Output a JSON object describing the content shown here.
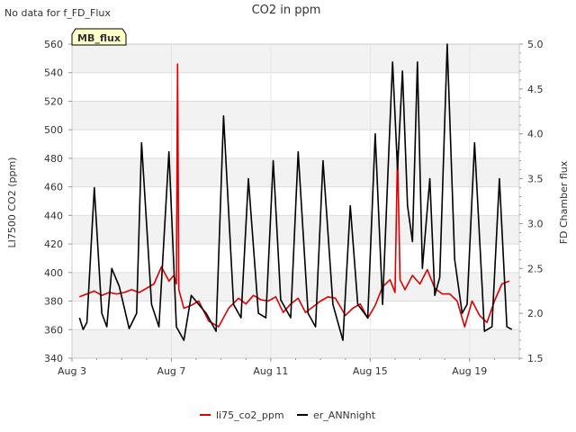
{
  "chart_data": {
    "type": "line",
    "title": "CO2 in ppm",
    "note": "No data for f_FD_Flux",
    "badge": "MB_flux",
    "ylabel_left": "LI7500 CO2 (ppm)",
    "ylabel_right": "FD Chamber flux",
    "ylim_left": [
      340,
      560
    ],
    "ylim_right": [
      1.5,
      5.0
    ],
    "xlim": [
      3.0,
      21.0
    ],
    "x_ticks": [
      {
        "x": 3,
        "label": "Aug 3"
      },
      {
        "x": 7,
        "label": "Aug 7"
      },
      {
        "x": 11,
        "label": "Aug 11"
      },
      {
        "x": 15,
        "label": "Aug 15"
      },
      {
        "x": 19,
        "label": "Aug 19"
      }
    ],
    "y_ticks_left": [
      340,
      360,
      380,
      400,
      420,
      440,
      460,
      480,
      500,
      520,
      540,
      560
    ],
    "y_ticks_right": [
      "1.5",
      "2.0",
      "2.5",
      "3.0",
      "3.5",
      "4.0",
      "4.5",
      "5.0"
    ],
    "grid": true,
    "legend_position": "bottom",
    "series": [
      {
        "name": "li75_co2_ppm",
        "color": "#dd0000",
        "axis": "left",
        "x": [
          3.3,
          3.6,
          3.9,
          4.2,
          4.5,
          4.8,
          5.1,
          5.4,
          5.7,
          6.0,
          6.3,
          6.6,
          6.9,
          7.1,
          7.2,
          7.25,
          7.3,
          7.5,
          7.8,
          8.1,
          8.5,
          8.9,
          9.3,
          9.7,
          10.0,
          10.3,
          10.6,
          10.9,
          11.2,
          11.5,
          11.8,
          12.1,
          12.4,
          12.7,
          13.0,
          13.3,
          13.6,
          14.0,
          14.3,
          14.6,
          14.9,
          15.2,
          15.5,
          15.8,
          16.0,
          16.1,
          16.2,
          16.4,
          16.7,
          17.0,
          17.3,
          17.6,
          17.9,
          18.2,
          18.5,
          18.8,
          19.1,
          19.4,
          19.7,
          20.0,
          20.3,
          20.6
        ],
        "y": [
          383,
          385,
          387,
          384,
          386,
          385,
          386,
          388,
          386,
          389,
          392,
          404,
          394,
          398,
          392,
          546,
          388,
          375,
          377,
          380,
          366,
          362,
          375,
          382,
          378,
          384,
          381,
          380,
          383,
          372,
          378,
          382,
          372,
          376,
          380,
          383,
          382,
          370,
          375,
          378,
          368,
          377,
          390,
          395,
          386,
          485,
          395,
          388,
          398,
          392,
          402,
          389,
          385,
          385,
          380,
          362,
          380,
          370,
          365,
          380,
          392,
          394
        ]
      },
      {
        "name": "er_ANNnight",
        "color": "#000000",
        "axis": "right",
        "x": [
          3.3,
          3.45,
          3.6,
          3.9,
          4.2,
          4.4,
          4.6,
          4.9,
          5.3,
          5.6,
          5.8,
          6.2,
          6.5,
          6.9,
          7.2,
          7.5,
          7.8,
          8.1,
          8.4,
          8.8,
          9.1,
          9.5,
          9.8,
          10.1,
          10.5,
          10.8,
          11.1,
          11.4,
          11.8,
          12.1,
          12.5,
          12.8,
          13.1,
          13.5,
          13.9,
          14.2,
          14.5,
          14.9,
          15.2,
          15.5,
          15.75,
          15.9,
          16.1,
          16.3,
          16.5,
          16.7,
          16.9,
          17.1,
          17.4,
          17.6,
          17.8,
          18.1,
          18.4,
          18.7,
          18.9,
          19.2,
          19.6,
          19.9,
          20.2,
          20.5,
          20.7
        ],
        "y": [
          1.95,
          1.82,
          1.9,
          3.4,
          2.0,
          1.85,
          2.5,
          2.3,
          1.83,
          2.0,
          3.9,
          2.1,
          1.85,
          3.8,
          1.85,
          1.7,
          2.2,
          2.1,
          2.0,
          1.8,
          4.2,
          2.1,
          1.95,
          3.5,
          2.0,
          1.95,
          3.7,
          2.15,
          1.95,
          3.8,
          2.0,
          1.85,
          3.7,
          2.1,
          1.7,
          3.2,
          2.1,
          1.95,
          4.0,
          2.1,
          3.8,
          4.8,
          3.6,
          4.7,
          3.2,
          2.8,
          4.8,
          2.5,
          3.5,
          2.2,
          2.4,
          5.0,
          2.6,
          2.0,
          2.1,
          3.9,
          1.8,
          1.85,
          3.5,
          1.85,
          1.82
        ]
      }
    ]
  },
  "legend": [
    {
      "label": "li75_co2_ppm",
      "color": "#dd0000"
    },
    {
      "label": "er_ANNnight",
      "color": "#000000"
    }
  ]
}
